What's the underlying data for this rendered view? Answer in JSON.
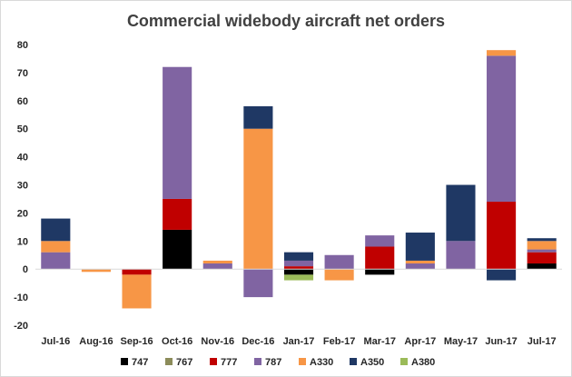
{
  "chart_data": {
    "type": "bar",
    "stacked": true,
    "title": "Commercial widebody aircraft net orders",
    "xlabel": "",
    "ylabel": "",
    "ylim": [
      -20,
      80
    ],
    "yticks": [
      -20,
      -10,
      0,
      10,
      20,
      30,
      40,
      50,
      60,
      70,
      80
    ],
    "grid": false,
    "legend_position": "bottom",
    "categories": [
      "Jul-16",
      "Aug-16",
      "Sep-16",
      "Oct-16",
      "Nov-16",
      "Dec-16",
      "Jan-17",
      "Feb-17",
      "Mar-17",
      "Apr-17",
      "May-17",
      "Jun-17",
      "Jul-17"
    ],
    "series": [
      {
        "name": "747",
        "color": "#000000",
        "values": [
          0,
          0,
          0,
          14,
          0,
          0,
          -2,
          0,
          -2,
          0,
          0,
          0,
          2
        ]
      },
      {
        "name": "767",
        "color": "#8c8c5a",
        "values": [
          0,
          0,
          0,
          0,
          0,
          0,
          0,
          0,
          0,
          0,
          0,
          0,
          0
        ]
      },
      {
        "name": "777",
        "color": "#c00000",
        "values": [
          0,
          0,
          -2,
          11,
          0,
          0,
          1,
          0,
          8,
          0,
          0,
          24,
          4
        ]
      },
      {
        "name": "787",
        "color": "#8064a2",
        "values": [
          6,
          0,
          0,
          47,
          2,
          -10,
          2,
          5,
          4,
          2,
          10,
          52,
          1
        ]
      },
      {
        "name": "A330",
        "color": "#f79646",
        "values": [
          4,
          -1,
          -12,
          0,
          1,
          50,
          0,
          -4,
          0,
          1,
          0,
          2,
          3
        ]
      },
      {
        "name": "A350",
        "color": "#1f3864",
        "values": [
          8,
          0,
          0,
          0,
          0,
          8,
          3,
          0,
          0,
          10,
          20,
          -4,
          1
        ]
      },
      {
        "name": "A380",
        "color": "#9bbb59",
        "values": [
          0,
          0,
          0,
          0,
          0,
          0,
          -2,
          0,
          0,
          0,
          0,
          0,
          0
        ]
      }
    ]
  }
}
